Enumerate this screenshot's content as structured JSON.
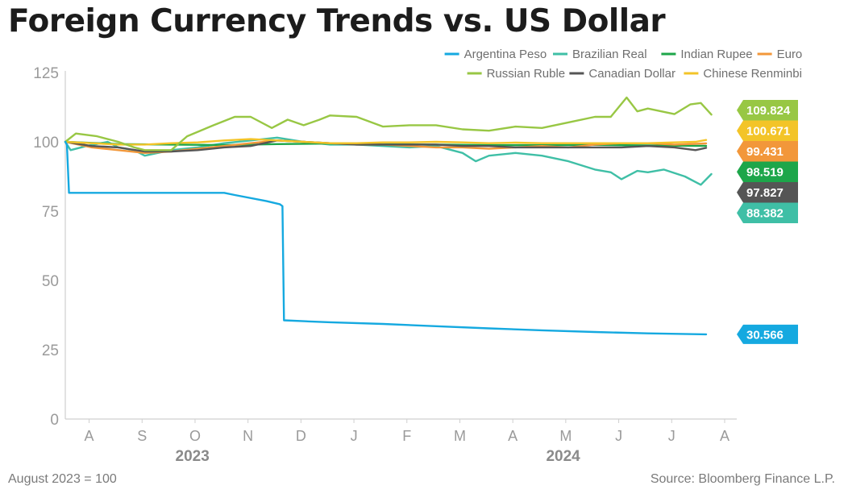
{
  "header": {
    "title": "Foreign Currency Trends vs. US Dollar"
  },
  "footer": {
    "note": "August 2023 = 100",
    "source": "Source: Bloomberg Finance L.P."
  },
  "chart_data": {
    "type": "line",
    "x_unit": "month",
    "x_range": [
      "2023-08",
      "2024-08"
    ],
    "month_ticks": [
      "A",
      "S",
      "O",
      "N",
      "D",
      "J",
      "F",
      "M",
      "A",
      "M",
      "J",
      "J",
      "A"
    ],
    "year_labels": [
      "2023",
      "2024"
    ],
    "yticks": [
      0,
      25,
      50,
      75,
      100,
      125
    ],
    "ylim": [
      0,
      125
    ],
    "grid": false,
    "legend_position": "top-right",
    "series": [
      {
        "name": "Argentina Peso",
        "color": "#15a9e0",
        "end_label": "30.566",
        "points": [
          [
            0,
            100
          ],
          [
            0.03,
            99
          ],
          [
            0.07,
            81.6
          ],
          [
            1,
            81.6
          ],
          [
            2,
            81.6
          ],
          [
            3,
            81.6
          ],
          [
            3.2,
            80.8
          ],
          [
            3.8,
            78.6
          ],
          [
            4.05,
            77.5
          ],
          [
            4.1,
            76.8
          ],
          [
            4.13,
            35.6
          ],
          [
            4.5,
            35.3
          ],
          [
            5,
            34.9
          ],
          [
            6,
            34.3
          ],
          [
            7,
            33.5
          ],
          [
            8,
            32.7
          ],
          [
            9,
            32
          ],
          [
            10,
            31.4
          ],
          [
            11,
            30.9
          ],
          [
            12.1,
            30.566
          ]
        ]
      },
      {
        "name": "Brazilian Real",
        "color": "#3fbfa6",
        "end_label": "88.382",
        "points": [
          [
            0,
            100
          ],
          [
            0.1,
            97
          ],
          [
            0.4,
            98.5
          ],
          [
            0.8,
            100
          ],
          [
            1,
            98
          ],
          [
            1.3,
            97
          ],
          [
            1.5,
            95
          ],
          [
            2,
            97
          ],
          [
            2.5,
            98
          ],
          [
            3,
            99.5
          ],
          [
            3.5,
            100.5
          ],
          [
            4,
            101.5
          ],
          [
            4.5,
            100
          ],
          [
            5,
            99
          ],
          [
            5.5,
            99
          ],
          [
            6,
            98.5
          ],
          [
            6.5,
            98
          ],
          [
            7,
            98.5
          ],
          [
            7.5,
            96
          ],
          [
            7.75,
            93
          ],
          [
            8,
            95
          ],
          [
            8.5,
            96
          ],
          [
            9,
            95
          ],
          [
            9.5,
            93
          ],
          [
            10,
            90
          ],
          [
            10.3,
            89
          ],
          [
            10.5,
            86.5
          ],
          [
            10.8,
            89.5
          ],
          [
            11,
            89
          ],
          [
            11.3,
            90
          ],
          [
            11.7,
            87.5
          ],
          [
            12,
            84.5
          ],
          [
            12.2,
            88.382
          ]
        ]
      },
      {
        "name": "Indian Rupee",
        "color": "#1da64a",
        "end_label": "98.519",
        "points": [
          [
            0,
            100
          ],
          [
            1,
            99.2
          ],
          [
            2,
            99
          ],
          [
            3,
            98.8
          ],
          [
            4,
            99.2
          ],
          [
            5,
            99.4
          ],
          [
            6,
            99.1
          ],
          [
            7,
            99
          ],
          [
            8,
            98.8
          ],
          [
            9,
            98.8
          ],
          [
            10,
            98.9
          ],
          [
            11,
            98.7
          ],
          [
            12.1,
            98.519
          ]
        ]
      },
      {
        "name": "Euro",
        "color": "#f2973a",
        "end_label": "99.431",
        "points": [
          [
            0,
            100
          ],
          [
            0.5,
            98
          ],
          [
            1,
            97
          ],
          [
            1.5,
            96
          ],
          [
            2,
            96.5
          ],
          [
            2.5,
            97.5
          ],
          [
            3,
            98.5
          ],
          [
            3.5,
            99.5
          ],
          [
            4,
            100.5
          ],
          [
            4.5,
            100
          ],
          [
            5,
            99.5
          ],
          [
            5.5,
            99
          ],
          [
            6,
            99
          ],
          [
            6.5,
            98.5
          ],
          [
            7,
            98
          ],
          [
            7.5,
            98
          ],
          [
            8,
            97.5
          ],
          [
            8.5,
            98
          ],
          [
            9,
            98.5
          ],
          [
            9.5,
            98
          ],
          [
            10,
            99
          ],
          [
            10.5,
            99.5
          ],
          [
            11,
            99.5
          ],
          [
            11.5,
            99
          ],
          [
            12.1,
            99.431
          ]
        ]
      },
      {
        "name": "Russian Ruble",
        "color": "#98c744",
        "end_label": "109.824",
        "points": [
          [
            0,
            100
          ],
          [
            0.2,
            103
          ],
          [
            0.6,
            102
          ],
          [
            1,
            100
          ],
          [
            1.3,
            98
          ],
          [
            1.5,
            97
          ],
          [
            2,
            97
          ],
          [
            2.3,
            102
          ],
          [
            2.8,
            106
          ],
          [
            3.2,
            109
          ],
          [
            3.5,
            109
          ],
          [
            3.9,
            105
          ],
          [
            4.2,
            108
          ],
          [
            4.5,
            106
          ],
          [
            4.8,
            108
          ],
          [
            5,
            109.5
          ],
          [
            5.5,
            109
          ],
          [
            6,
            105.5
          ],
          [
            6.5,
            106
          ],
          [
            7,
            106
          ],
          [
            7.5,
            104.5
          ],
          [
            8,
            104
          ],
          [
            8.5,
            105.5
          ],
          [
            9,
            105
          ],
          [
            9.5,
            107
          ],
          [
            10,
            109
          ],
          [
            10.3,
            109
          ],
          [
            10.6,
            116
          ],
          [
            10.8,
            111
          ],
          [
            11,
            112
          ],
          [
            11.5,
            110
          ],
          [
            11.8,
            113.5
          ],
          [
            12,
            114
          ],
          [
            12.2,
            109.824
          ]
        ]
      },
      {
        "name": "Canadian Dollar",
        "color": "#555555",
        "end_label": "97.827",
        "points": [
          [
            0,
            100
          ],
          [
            0.5,
            98.5
          ],
          [
            1,
            98
          ],
          [
            1.5,
            96.5
          ],
          [
            2,
            96.5
          ],
          [
            2.5,
            97
          ],
          [
            3,
            98
          ],
          [
            3.5,
            98.5
          ],
          [
            4,
            100.5
          ],
          [
            4.5,
            100
          ],
          [
            5,
            99.5
          ],
          [
            5.5,
            99
          ],
          [
            6,
            99
          ],
          [
            6.5,
            99
          ],
          [
            7,
            99
          ],
          [
            7.5,
            98.5
          ],
          [
            8,
            98.5
          ],
          [
            8.5,
            98
          ],
          [
            9,
            98
          ],
          [
            9.5,
            98
          ],
          [
            10,
            98
          ],
          [
            10.5,
            98
          ],
          [
            11,
            98.5
          ],
          [
            11.5,
            98
          ],
          [
            11.9,
            97
          ],
          [
            12.1,
            97.827
          ]
        ]
      },
      {
        "name": "Chinese Renminbi",
        "color": "#f3c428",
        "end_label": "100.671",
        "points": [
          [
            0,
            100
          ],
          [
            0.5,
            99.5
          ],
          [
            1,
            99
          ],
          [
            1.5,
            99
          ],
          [
            2,
            99.5
          ],
          [
            2.5,
            99.8
          ],
          [
            3,
            100.5
          ],
          [
            3.5,
            101
          ],
          [
            4,
            100.5
          ],
          [
            4.5,
            100
          ],
          [
            5,
            99.5
          ],
          [
            5.5,
            99.5
          ],
          [
            6,
            99.8
          ],
          [
            6.5,
            99.8
          ],
          [
            7,
            100
          ],
          [
            7.5,
            99.8
          ],
          [
            8,
            99.5
          ],
          [
            8.5,
            99.7
          ],
          [
            9,
            99.5
          ],
          [
            9.5,
            99.5
          ],
          [
            10,
            99.5
          ],
          [
            10.5,
            99.5
          ],
          [
            11,
            99.5
          ],
          [
            11.5,
            99.8
          ],
          [
            11.9,
            100
          ],
          [
            12.1,
            100.671
          ]
        ]
      }
    ]
  }
}
